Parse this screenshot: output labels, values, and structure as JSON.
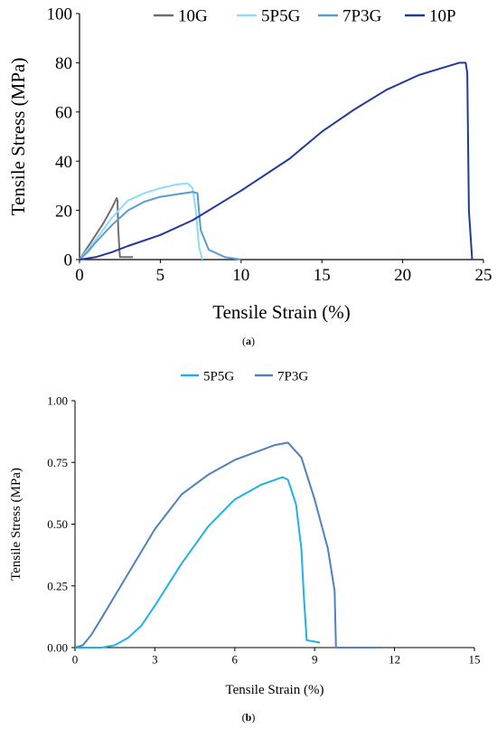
{
  "chart_data": [
    {
      "type": "line",
      "caption": "a",
      "xlabel": "Tensile Strain (%)",
      "ylabel": "Tensile Stress (MPa)",
      "xlim": [
        0,
        25
      ],
      "ylim": [
        0,
        100
      ],
      "x_ticks": [
        "0",
        "5",
        "10",
        "15",
        "20",
        "25"
      ],
      "y_ticks": [
        "0",
        "20",
        "40",
        "60",
        "80",
        "100"
      ],
      "grid": false,
      "legend_position": "top",
      "series": [
        {
          "name": "10G",
          "color": "#6e6e6e",
          "x": [
            0,
            0.5,
            1.0,
            1.5,
            2.0,
            2.3,
            2.35,
            2.4,
            2.5,
            3.3
          ],
          "y": [
            0,
            5,
            10,
            15,
            21,
            25,
            24,
            12,
            1,
            1
          ]
        },
        {
          "name": "5P5G",
          "color": "#8fdcf4",
          "x": [
            0,
            0.5,
            1,
            2,
            3,
            4,
            5,
            6,
            6.7,
            7.0,
            7.2,
            7.4,
            7.6
          ],
          "y": [
            0,
            4,
            8,
            17,
            24,
            27,
            29,
            30.5,
            31,
            29,
            20,
            5,
            0
          ]
        },
        {
          "name": "7P3G",
          "color": "#5b9bd5",
          "x": [
            0,
            0.5,
            1,
            2,
            3,
            4,
            5,
            6,
            7,
            7.3,
            7.5,
            8,
            9,
            10
          ],
          "y": [
            0,
            3,
            7,
            14,
            20,
            23.5,
            25.5,
            26.5,
            27.5,
            27,
            12,
            4,
            1,
            0
          ]
        },
        {
          "name": "10P",
          "color": "#1f3b99",
          "x": [
            0,
            1,
            2,
            3,
            5,
            7,
            10,
            13,
            15,
            17,
            19,
            21,
            22.5,
            23.5,
            23.9,
            24.0,
            24.1,
            24.3
          ],
          "y": [
            0,
            1,
            3,
            5.5,
            10,
            16,
            28,
            41,
            52,
            61,
            69,
            75,
            78,
            80,
            80,
            76,
            20,
            0
          ]
        }
      ]
    },
    {
      "type": "line",
      "caption": "b",
      "xlabel": "Tensile Strain (%)",
      "ylabel": "Tensile Stress (MPa)",
      "xlim": [
        0,
        15
      ],
      "ylim": [
        0,
        1.0
      ],
      "x_ticks": [
        "0",
        "3",
        "6",
        "9",
        "12",
        "15"
      ],
      "y_ticks": [
        "0.00",
        "0.25",
        "0.50",
        "0.75",
        "1.00"
      ],
      "grid": false,
      "legend_position": "top",
      "series": [
        {
          "name": "5P5G",
          "color": "#1fb1e6",
          "x": [
            0,
            1.0,
            1.5,
            2.0,
            2.5,
            3,
            4,
            5,
            6,
            7,
            7.8,
            8.0,
            8.3,
            8.5,
            8.6,
            8.7,
            9.2
          ],
          "y": [
            0,
            0,
            0.01,
            0.04,
            0.09,
            0.17,
            0.34,
            0.49,
            0.6,
            0.66,
            0.69,
            0.68,
            0.58,
            0.4,
            0.2,
            0.03,
            0.02
          ]
        },
        {
          "name": "7P3G",
          "color": "#4f81bd",
          "x": [
            0,
            0.3,
            0.6,
            1,
            2,
            3,
            4,
            5,
            6,
            7,
            7.5,
            8,
            8.5,
            9,
            9.5,
            9.75,
            9.8,
            11.5
          ],
          "y": [
            0,
            0.01,
            0.05,
            0.12,
            0.3,
            0.48,
            0.62,
            0.7,
            0.76,
            0.8,
            0.82,
            0.83,
            0.77,
            0.6,
            0.4,
            0.23,
            0,
            0
          ]
        }
      ]
    }
  ]
}
